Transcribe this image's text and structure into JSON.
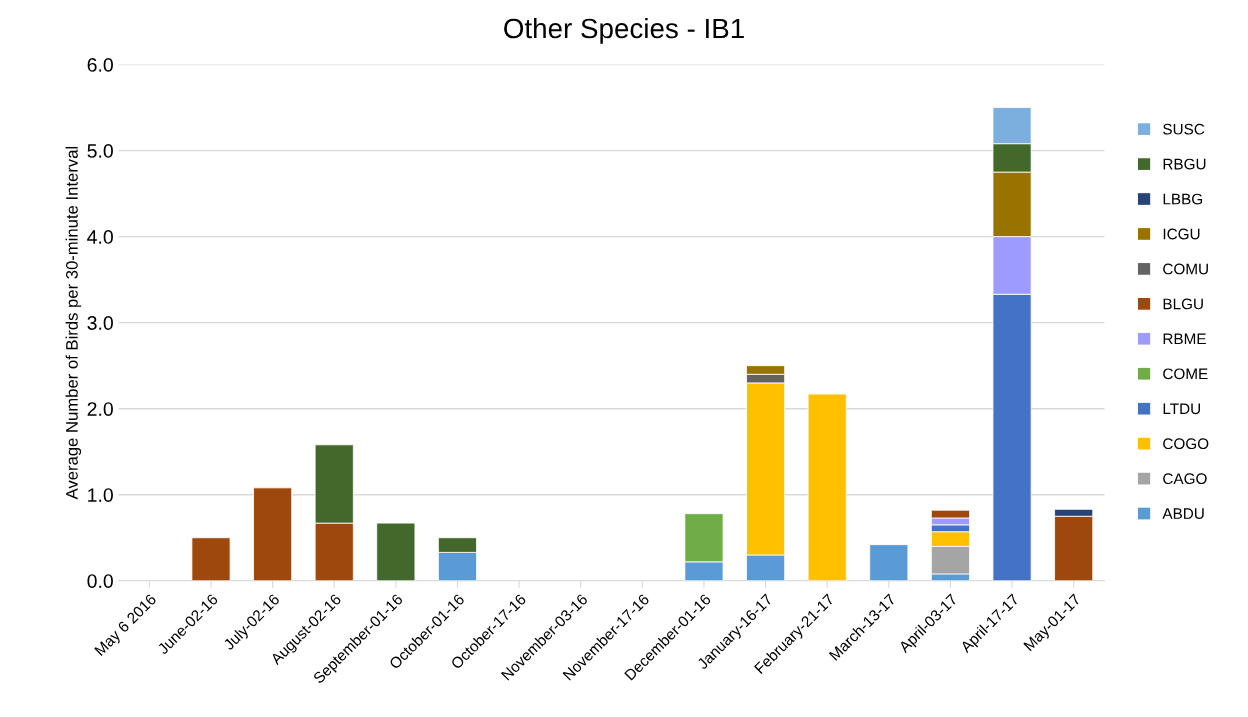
{
  "chart_data": {
    "type": "bar",
    "stacked": true,
    "title": "Other Species - IB1",
    "ylabel": "Average Number of Birds per 30-minute Interval",
    "categories": [
      "May 6 2016",
      "June-02-16",
      "July-02-16",
      "August-02-16",
      "September-01-16",
      "October-01-16",
      "October-17-16",
      "November-03-16",
      "November-17-16",
      "December-01-16",
      "January-16-17",
      "February-21-17",
      "March-13-17",
      "April-03-17",
      "April-17-17",
      "May-01-17"
    ],
    "series": [
      {
        "name": "ABDU",
        "color": "#5b9bd5",
        "values": [
          null,
          null,
          null,
          null,
          null,
          0.33,
          null,
          null,
          null,
          0.22,
          0.3,
          null,
          0.42,
          0.08,
          null,
          null
        ]
      },
      {
        "name": "CAGO",
        "color": "#a5a5a5",
        "values": [
          null,
          null,
          null,
          null,
          null,
          null,
          null,
          null,
          null,
          null,
          null,
          null,
          null,
          0.32,
          null,
          null
        ]
      },
      {
        "name": "COGO",
        "color": "#ffc000",
        "values": [
          null,
          null,
          null,
          null,
          null,
          null,
          null,
          null,
          null,
          null,
          2.0,
          2.17,
          null,
          0.17,
          null,
          null
        ]
      },
      {
        "name": "LTDU",
        "color": "#4472c4",
        "values": [
          null,
          null,
          null,
          null,
          null,
          null,
          null,
          null,
          null,
          null,
          null,
          null,
          null,
          0.08,
          3.33,
          null
        ]
      },
      {
        "name": "COME",
        "color": "#70ad47",
        "values": [
          null,
          null,
          null,
          null,
          null,
          null,
          null,
          null,
          null,
          0.56,
          null,
          null,
          null,
          null,
          null,
          null
        ]
      },
      {
        "name": "RBME",
        "color": "#9e9bff",
        "values": [
          null,
          null,
          null,
          null,
          null,
          null,
          null,
          null,
          null,
          null,
          null,
          null,
          null,
          0.08,
          0.67,
          null
        ]
      },
      {
        "name": "BLGU",
        "color": "#9e480e",
        "values": [
          null,
          0.5,
          1.08,
          0.67,
          null,
          null,
          null,
          null,
          null,
          null,
          null,
          null,
          null,
          0.09,
          null,
          0.75
        ]
      },
      {
        "name": "COMU",
        "color": "#636363",
        "values": [
          null,
          null,
          null,
          null,
          null,
          null,
          null,
          null,
          null,
          null,
          0.1,
          null,
          null,
          null,
          null,
          null
        ]
      },
      {
        "name": "ICGU",
        "color": "#997300",
        "values": [
          null,
          null,
          null,
          null,
          null,
          null,
          null,
          null,
          null,
          null,
          0.1,
          null,
          null,
          null,
          0.75,
          null
        ]
      },
      {
        "name": "LBBG",
        "color": "#264478",
        "values": [
          null,
          null,
          null,
          null,
          null,
          null,
          null,
          null,
          null,
          null,
          null,
          null,
          null,
          null,
          null,
          0.08
        ]
      },
      {
        "name": "RBGU",
        "color": "#43682b",
        "values": [
          null,
          null,
          null,
          0.91,
          0.67,
          0.17,
          null,
          null,
          null,
          null,
          null,
          null,
          null,
          null,
          0.33,
          null
        ]
      },
      {
        "name": "SUSC",
        "color": "#7cafdd",
        "values": [
          null,
          null,
          null,
          null,
          null,
          null,
          null,
          null,
          null,
          null,
          null,
          null,
          null,
          null,
          0.42,
          null
        ]
      }
    ],
    "ylim": [
      0,
      6
    ],
    "yticks": [
      {
        "value": 0,
        "label": "0.0"
      },
      {
        "value": 1,
        "label": "1.0"
      },
      {
        "value": 2,
        "label": "2.0"
      },
      {
        "value": 3,
        "label": "3.0"
      },
      {
        "value": 4,
        "label": "4.0"
      },
      {
        "value": 5,
        "label": "5.0"
      },
      {
        "value": 6,
        "label": "6.0"
      }
    ],
    "grid": "y",
    "legend": "right"
  }
}
